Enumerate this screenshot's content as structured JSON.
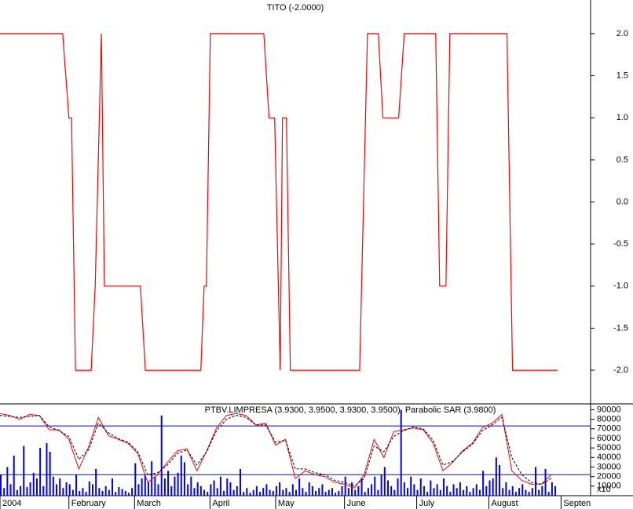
{
  "chart_data": [
    {
      "type": "line",
      "title": "TITO (-2.0000)",
      "x": [
        0,
        19.1,
        21,
        21.8,
        23,
        27.8,
        29,
        30.9,
        31.8,
        42.8,
        44.3,
        61.2,
        62.2,
        62.9,
        64.1,
        80.4,
        82,
        83.7,
        85.4,
        86.1,
        87.3,
        88.5,
        109.6,
        112,
        115.3,
        116.7,
        121.5,
        123.2,
        132.8,
        134,
        135.9,
        137.1,
        154.5,
        156.2,
        169.9
      ],
      "values": [
        2,
        2,
        1,
        1,
        -2,
        -2,
        -1,
        2,
        -1,
        -1,
        -2,
        -2,
        -1,
        -1,
        2,
        2,
        1,
        1,
        -2,
        1,
        1,
        -2,
        -2,
        2,
        2,
        1,
        1,
        2,
        2,
        -1,
        -1,
        2,
        2,
        -2,
        -2
      ],
      "color": "#ff0000",
      "xlim": [
        0,
        180
      ],
      "ylim": [
        -2.4,
        2.4
      ],
      "yticks": [
        {
          "value": 2,
          "label": "2.0"
        },
        1.5,
        {
          "value": 1,
          "label": "1.0"
        },
        0.5,
        {
          "value": 0,
          "label": "0.0"
        },
        -0.5,
        {
          "value": -1,
          "label": "-1.0"
        },
        -1.5,
        {
          "value": -2,
          "label": "-2.0"
        }
      ]
    },
    {
      "type": "bar",
      "title": "PTBV.LIMPRESA (3.9300, 3.9500, 3.9300, 3.9500), Parabolic SAR (3.9800)",
      "series": [
        {
          "type": "bar",
          "color": "#0000ff",
          "values": [
            22000,
            8000,
            30000,
            12000,
            42000,
            6000,
            10000,
            52000,
            9000,
            14000,
            24000,
            18000,
            50000,
            10000,
            55000,
            46000,
            20000,
            12000,
            18000,
            8000,
            14000,
            12000,
            6000,
            22000,
            5000,
            8000,
            4000,
            15000,
            12000,
            28000,
            8000,
            5000,
            10000,
            6000,
            18000,
            4000,
            9000,
            7000,
            5000,
            3000,
            8000,
            34000,
            12000,
            18000,
            22000,
            14000,
            36000,
            20000,
            12000,
            84000,
            18000,
            26000,
            10000,
            20000,
            24000,
            42000,
            35000,
            12000,
            20000,
            8000,
            14000,
            10000,
            6000,
            4000,
            12000,
            16000,
            8000,
            20000,
            5000,
            18000,
            14000,
            6000,
            10000,
            28000,
            4000,
            8000,
            3000,
            6000,
            10000,
            4000,
            8000,
            12000,
            6000,
            5000,
            10000,
            14000,
            6000,
            8000,
            4000,
            12000,
            6000,
            18000,
            8000,
            4000,
            14000,
            10000,
            5000,
            8000,
            12000,
            4000,
            6000,
            8000,
            3000,
            5000,
            10000,
            20000,
            8000,
            14000,
            6000,
            10000,
            18000,
            4000,
            8000,
            12000,
            20000,
            6000,
            22000,
            30000,
            16000,
            10000,
            6000,
            18000,
            90000,
            14000,
            8000,
            20000,
            12000,
            6000,
            18000,
            10000,
            4000,
            16000,
            8000,
            12000,
            6000,
            18000,
            10000,
            4000,
            12000,
            8000,
            14000,
            6000,
            10000,
            4000,
            8000,
            12000,
            6000,
            26000,
            10000,
            16000,
            18000,
            40000,
            32000,
            8000,
            14000,
            6000,
            10000,
            4000,
            8000,
            12000,
            6000,
            4000,
            8000,
            30000,
            6000,
            10000,
            28000,
            4000,
            14000,
            10000
          ]
        },
        {
          "type": "line",
          "color": "#ff0000",
          "x": [
            0,
            3,
            6,
            9,
            12,
            15,
            18,
            21,
            24,
            27,
            30,
            33,
            36,
            39,
            42,
            45,
            48,
            51,
            54,
            57,
            60,
            63,
            66,
            69,
            72,
            75,
            78,
            81,
            84,
            87,
            90,
            93,
            96,
            99,
            102,
            105,
            108,
            111,
            114,
            117,
            120,
            123,
            126,
            129,
            132,
            135,
            138,
            141,
            144,
            147,
            150,
            153,
            156,
            159,
            162,
            165,
            168
          ],
          "values": [
            86000,
            84000,
            80000,
            85000,
            84000,
            69000,
            69000,
            59000,
            28000,
            51000,
            82000,
            63000,
            59000,
            55000,
            44000,
            14000,
            22000,
            35000,
            47000,
            49000,
            26000,
            47000,
            71000,
            84000,
            86000,
            84000,
            74000,
            76000,
            53000,
            59000,
            18000,
            26000,
            22000,
            20000,
            14000,
            12000,
            8000,
            22000,
            59000,
            40000,
            67000,
            69000,
            71000,
            69000,
            55000,
            26000,
            35000,
            47000,
            55000,
            71000,
            76000,
            85000,
            26000,
            16000,
            12000,
            12000,
            22000
          ]
        },
        {
          "type": "line",
          "color": "#000000",
          "dashed": true,
          "x": [
            0,
            3,
            6,
            9,
            12,
            15,
            18,
            21,
            24,
            27,
            30,
            33,
            36,
            39,
            42,
            45,
            48,
            51,
            54,
            57,
            60,
            63,
            66,
            69,
            72,
            75,
            78,
            81,
            84,
            87,
            90,
            93,
            96,
            99,
            102,
            105,
            108,
            111,
            114,
            117,
            120,
            123,
            126,
            129,
            132,
            135,
            138,
            141,
            144,
            147,
            150,
            153,
            156,
            159,
            162,
            165,
            168
          ],
          "values": [
            84000,
            83000,
            82000,
            83000,
            84000,
            72000,
            68000,
            62000,
            38000,
            48000,
            76000,
            66000,
            60000,
            56000,
            46000,
            22000,
            24000,
            32000,
            44000,
            48000,
            32000,
            46000,
            68000,
            80000,
            84000,
            82000,
            74000,
            74000,
            56000,
            58000,
            28000,
            28000,
            24000,
            22000,
            16000,
            14000,
            10000,
            18000,
            52000,
            46000,
            62000,
            68000,
            72000,
            70000,
            58000,
            32000,
            36000,
            46000,
            54000,
            68000,
            74000,
            82000,
            40000,
            22000,
            14000,
            12000,
            18000
          ]
        }
      ],
      "hlines": [
        73000,
        22000
      ],
      "hline_color": "#0000ff",
      "xlim": [
        0,
        180
      ],
      "ylim": [
        0,
        92000
      ],
      "yticks": [
        90000,
        80000,
        70000,
        60000,
        50000,
        40000,
        30000,
        20000,
        10000
      ],
      "xticks": [
        {
          "value": 0,
          "label": "2004"
        },
        {
          "value": 21,
          "label": "February"
        },
        {
          "value": 41,
          "label": "March"
        },
        {
          "value": 64,
          "label": "April"
        },
        {
          "value": 84,
          "label": "May"
        },
        {
          "value": 105,
          "label": "June"
        },
        {
          "value": 127,
          "label": "July"
        },
        {
          "value": 149,
          "label": "August"
        },
        {
          "value": 171,
          "label": "Septen"
        }
      ],
      "annotation": "x10"
    }
  ]
}
